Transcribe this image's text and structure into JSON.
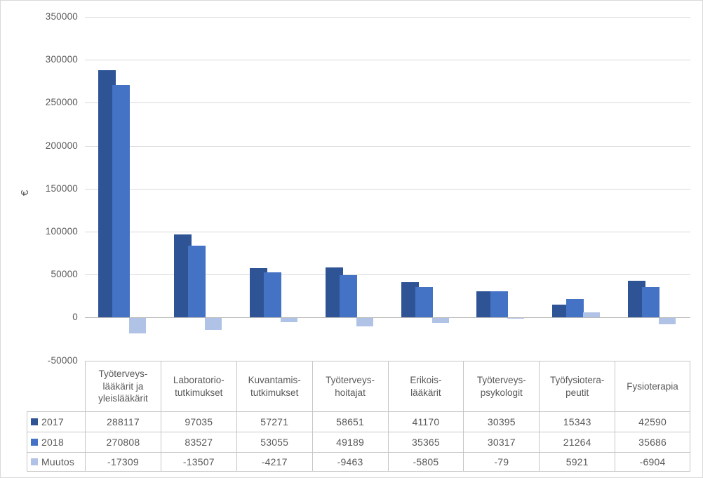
{
  "chart_data": {
    "type": "bar",
    "title": "",
    "xlabel": "",
    "ylabel": "€",
    "ylim": [
      -50000,
      350000
    ],
    "ytick_step": 50000,
    "yticks": [
      350000,
      300000,
      250000,
      200000,
      150000,
      100000,
      50000,
      0,
      -50000
    ],
    "grid": true,
    "legend_position": "table-left",
    "categories": [
      "Työterveyslääkärit ja yleislääkärit",
      "Laboratoriotutkimukset",
      "Kuvantamistutkimukset",
      "Työterveyshoitajat",
      "Erikoislääkärit",
      "Työterveyspsykologit",
      "Työfysioterapeutit",
      "Fysioterapia"
    ],
    "category_labels": [
      [
        "Työterveys-",
        "lääkärit ja",
        "yleislääkärit"
      ],
      [
        "Laboratorio-",
        "tutkimukset"
      ],
      [
        "Kuvantamis-",
        "tutkimukset"
      ],
      [
        "Työterveys-",
        "hoitajat"
      ],
      [
        "Erikois-",
        "lääkärit"
      ],
      [
        "Työterveys-",
        "psykologit"
      ],
      [
        "Työfysiotera-",
        "peutit"
      ],
      [
        "Fysioterapia"
      ]
    ],
    "series": [
      {
        "name": "2017",
        "color": "#2F5496",
        "values": [
          288117,
          97035,
          57271,
          58651,
          41170,
          30395,
          15343,
          42590
        ]
      },
      {
        "name": "2018",
        "color": "#4472C4",
        "values": [
          270808,
          83527,
          53055,
          49189,
          35365,
          30317,
          21264,
          35686
        ]
      },
      {
        "name": "Muutos",
        "color": "#B0C2E6",
        "values": [
          -17309,
          -13507,
          -4217,
          -9463,
          -5805,
          -79,
          5921,
          -6904
        ]
      }
    ]
  },
  "table": {
    "rows": [
      {
        "name": "2017",
        "swatch": "#2F5496",
        "cells": [
          "288117",
          "97035",
          "57271",
          "58651",
          "41170",
          "30395",
          "15343",
          "42590"
        ]
      },
      {
        "name": "2018",
        "swatch": "#4472C4",
        "cells": [
          "270808",
          "83527",
          "53055",
          "49189",
          "35365",
          "30317",
          "21264",
          "35686"
        ]
      },
      {
        "name": "Muutos",
        "swatch": "#B0C2E6",
        "cells": [
          "-17309",
          "-13507",
          "-4217",
          "-9463",
          "-5805",
          "-79",
          "5921",
          "-6904"
        ]
      }
    ]
  },
  "colors": {
    "series_2017": "#2F5496",
    "series_2018": "#4472C4",
    "series_muutos": "#B0C2E6",
    "gridline": "#D9D9D9",
    "table_border": "#C6C6C6",
    "text": "#595959"
  }
}
